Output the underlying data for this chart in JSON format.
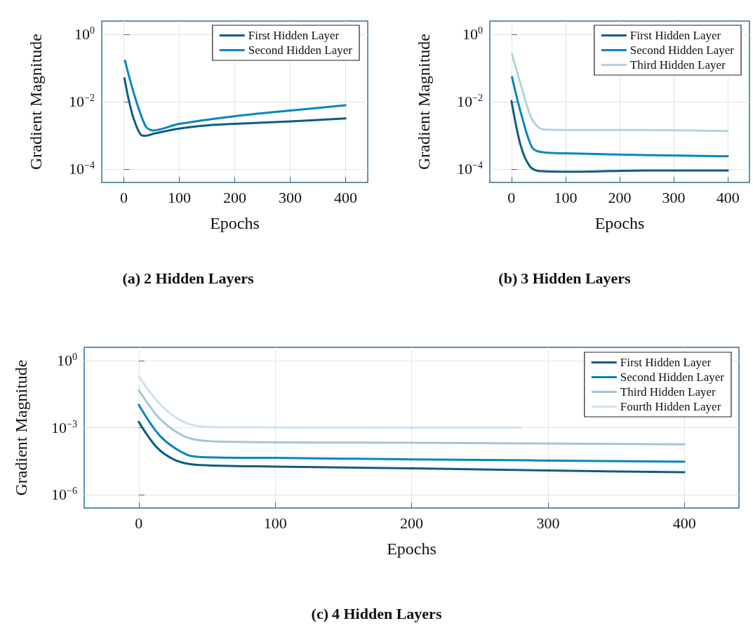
{
  "chart_data": [
    {
      "type": "line",
      "title": "(a) 2 Hidden Layers",
      "xlabel": "Epochs",
      "ylabel": "Gradient Magnitude",
      "log": "y",
      "grid": true,
      "legend": "top right",
      "marker": "none",
      "line_style": "solid",
      "xlim": [
        -40,
        440
      ],
      "xticks": [
        0,
        100,
        200,
        300,
        400
      ],
      "ylim": [
        4e-05,
        2.5
      ],
      "yticks": [
        {
          "value": 1,
          "label": "10$^{0}$"
        },
        {
          "value": 0.01,
          "label": "10$^{−2}$"
        },
        {
          "value": 0.0001,
          "label": "10$^{−4}$"
        }
      ],
      "series": [
        {
          "name": "First Hidden Layer",
          "color": "#0e5c84",
          "x": [
            1,
            9,
            18,
            32,
            39,
            56,
            100,
            153,
            199,
            301,
            400
          ],
          "values": [
            0.05,
            0.0108,
            0.003,
            0.001,
            0.00098,
            0.00115,
            0.0016,
            0.002,
            0.0022,
            0.0026,
            0.0032
          ]
        },
        {
          "name": "Second Hidden Layer",
          "color": "#0a85c2",
          "x": [
            2,
            18,
            39,
            52,
            100,
            199,
            301,
            400
          ],
          "values": [
            0.166,
            0.0175,
            0.0019,
            0.0014,
            0.0022,
            0.0037,
            0.0055,
            0.0079
          ]
        }
      ]
    },
    {
      "type": "line",
      "title": "(b) 3 Hidden Layers",
      "xlabel": "Epochs",
      "ylabel": "Gradient Magnitude",
      "log": "y",
      "grid": true,
      "legend": "top right",
      "marker": "none",
      "line_style": "solid",
      "xlim": [
        -40,
        440
      ],
      "xticks": [
        0,
        100,
        200,
        300,
        400
      ],
      "ylim": [
        4e-05,
        2.5
      ],
      "yticks": [
        {
          "value": 1,
          "label": "10$^{0}$"
        },
        {
          "value": 0.01,
          "label": "10$^{−2}$"
        },
        {
          "value": 0.0001,
          "label": "10$^{−4}$"
        }
      ],
      "series": [
        {
          "name": "First Hidden Layer",
          "color": "#0e5c84",
          "x": [
            0,
            17,
            34,
            51,
            118,
            245,
            400
          ],
          "values": [
            0.0105,
            0.0005,
            0.00012,
            8.7e-05,
            8.3e-05,
            9.1e-05,
            9.1e-05
          ]
        },
        {
          "name": "Second Hidden Layer",
          "color": "#0a85c2",
          "x": [
            1,
            17,
            38,
            55,
            118,
            245,
            400
          ],
          "values": [
            0.054,
            0.0049,
            0.00044,
            0.00032,
            0.00029,
            0.00026,
            0.00024
          ]
        },
        {
          "name": "Third Hidden Layer",
          "color": "#b3d3df",
          "x": [
            1,
            17,
            38,
            59,
            118,
            245,
            400
          ],
          "values": [
            0.26,
            0.033,
            0.003,
            0.0015,
            0.00145,
            0.00144,
            0.00135
          ]
        }
      ]
    },
    {
      "type": "line",
      "title": "(c) 4 Hidden Layers",
      "xlabel": "Epochs",
      "ylabel": "Gradient Magnitude",
      "log": "y",
      "grid": true,
      "legend": "top right",
      "marker": "none",
      "line_style": "solid",
      "xlim": [
        -40,
        440
      ],
      "xticks": [
        0,
        100,
        200,
        300,
        400
      ],
      "ylim": [
        2.5e-07,
        4
      ],
      "yticks": [
        {
          "value": 1,
          "label": "10$^{0}$"
        },
        {
          "value": 0.001,
          "label": "10$^{−3}$"
        },
        {
          "value": 1e-06,
          "label": "10$^{−6}$"
        }
      ],
      "series": [
        {
          "name": "First Hidden Layer",
          "color": "#0e5c84",
          "x": [
            0,
            13,
            26,
            41,
            100,
            202,
            300,
            400
          ],
          "values": [
            0.0018,
            0.000135,
            3.7e-05,
            2.2e-05,
            1.8e-05,
            1.5e-05,
            1.2e-05,
            1e-05
          ]
        },
        {
          "name": "Second Hidden Layer",
          "color": "#0a85c2",
          "x": [
            0,
            16,
            35,
            47,
            100,
            202,
            400
          ],
          "values": [
            0.0105,
            0.0004,
            6.2e-05,
            4.8e-05,
            4.4e-05,
            3.8e-05,
            3e-05
          ]
        },
        {
          "name": "Third Hidden Layer",
          "color": "#a8c5d5",
          "x": [
            0,
            16,
            35,
            57,
            202,
            400
          ],
          "values": [
            0.048,
            0.0023,
            0.00037,
            0.00024,
            0.00021,
            0.00018
          ]
        },
        {
          "name": "Fourth Hidden Layer",
          "color": "#d0e2ee",
          "x": [
            0,
            16,
            35,
            57,
            202,
            280
          ],
          "values": [
            0.2,
            0.0105,
            0.0016,
            0.00105,
            0.001,
            0.001
          ]
        }
      ]
    }
  ]
}
